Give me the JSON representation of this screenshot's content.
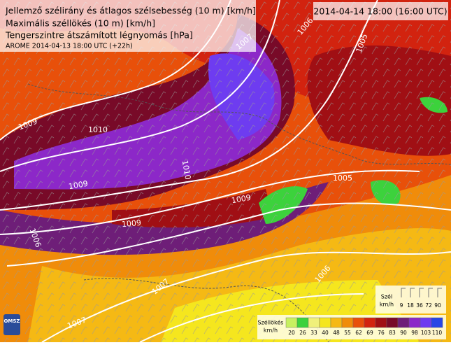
{
  "header": {
    "lines": [
      "Jellemző szélirány és átlagos szélsebesség (10 m) [km/h]",
      "Maximális széllökés (10 m) [km/h]",
      "Tengerszintre átszámított légnyomás [hPa]"
    ],
    "model_run": "AROME 2014-04-13 18:00 UTC (+22h)",
    "valid_time": "2014-04-14 18:00 (16:00 UTC)"
  },
  "map": {
    "isobar_labels": [
      "1006",
      "1007",
      "1005",
      "1009",
      "1010",
      "1010",
      "1009",
      "1009",
      "1009",
      "1005",
      "1006",
      "1007",
      "1007",
      "1006"
    ]
  },
  "wind_legend": {
    "title": "Szél",
    "unit": "km/h",
    "values": [
      9,
      18,
      36,
      72,
      90
    ]
  },
  "gust_legend": {
    "title": "Széllökés",
    "unit": "km/h",
    "values": [
      20,
      26,
      33,
      40,
      48,
      55,
      62,
      69,
      76,
      83,
      90,
      98,
      103,
      110
    ],
    "colors": [
      "#c8f060",
      "#3cd23c",
      "#f0f07a",
      "#f5e61e",
      "#f5b914",
      "#f08c0a",
      "#e8500a",
      "#d2230f",
      "#a00f14",
      "#780a28",
      "#6e1e78",
      "#8c28c8",
      "#6e3cf0",
      "#2846e6"
    ]
  },
  "logo": "OMSZ"
}
